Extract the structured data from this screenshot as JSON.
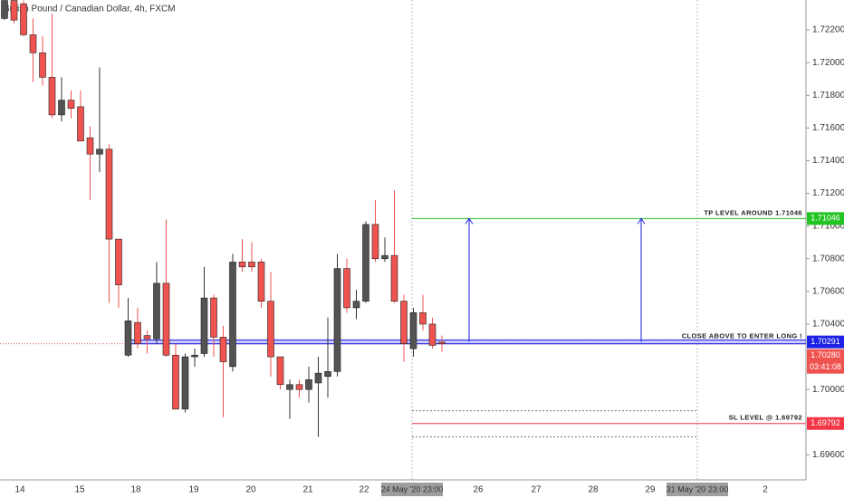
{
  "chart_data": {
    "type": "candlestick",
    "title": "British Pound / Canadian Dollar, 4h, FXCM",
    "up_color": "#535353",
    "down_color": "#ef5350",
    "ohlc": [
      [
        1.7227,
        1.7238,
        1.7226,
        1.7238
      ],
      [
        1.7238,
        1.7238,
        1.7224,
        1.7226
      ],
      [
        1.7236,
        1.7238,
        1.7216,
        1.7217
      ],
      [
        1.7217,
        1.7227,
        1.7188,
        1.7206
      ],
      [
        1.7206,
        1.7216,
        1.7186,
        1.7191
      ],
      [
        1.7191,
        1.723,
        1.7166,
        1.7168
      ],
      [
        1.7168,
        1.7191,
        1.7164,
        1.7177
      ],
      [
        1.7177,
        1.7183,
        1.7166,
        1.7172
      ],
      [
        1.7173,
        1.7183,
        1.7152,
        1.7152
      ],
      [
        1.7154,
        1.7161,
        1.7116,
        1.7144
      ],
      [
        1.7144,
        1.7197,
        1.7133,
        1.7147
      ],
      [
        1.7147,
        1.715,
        1.7053,
        1.7092
      ],
      [
        1.7092,
        1.7092,
        1.705,
        1.7064
      ],
      [
        1.7021,
        1.7056,
        1.702,
        1.7042
      ],
      [
        1.7041,
        1.705,
        1.7025,
        1.7028
      ],
      [
        1.7033,
        1.7036,
        1.7022,
        1.7031
      ],
      [
        1.7031,
        1.7078,
        1.7028,
        1.7065
      ],
      [
        1.7065,
        1.7104,
        1.702,
        1.7021
      ],
      [
        1.7021,
        1.7028,
        1.6988,
        1.6988
      ],
      [
        1.6988,
        1.7022,
        1.6986,
        1.702
      ],
      [
        1.702,
        1.7025,
        1.7014,
        1.7021
      ],
      [
        1.7022,
        1.7075,
        1.702,
        1.7056
      ],
      [
        1.7056,
        1.7058,
        1.702,
        1.7032
      ],
      [
        1.7032,
        1.7039,
        1.6983,
        1.7017
      ],
      [
        1.7014,
        1.7083,
        1.7011,
        1.7078
      ],
      [
        1.7078,
        1.7092,
        1.7072,
        1.7075
      ],
      [
        1.7078,
        1.709,
        1.7072,
        1.7075
      ],
      [
        1.7078,
        1.708,
        1.705,
        1.7054
      ],
      [
        1.7054,
        1.7072,
        1.7008,
        1.702
      ],
      [
        1.702,
        1.702,
        1.7,
        1.7003
      ],
      [
        1.7,
        1.7006,
        1.6982,
        1.7003
      ],
      [
        1.7003,
        1.7006,
        1.6995,
        1.7
      ],
      [
        1.7,
        1.7014,
        1.6992,
        1.7006
      ],
      [
        1.7004,
        1.702,
        1.6971,
        1.701
      ],
      [
        1.7008,
        1.7044,
        1.6995,
        1.7011
      ],
      [
        1.7011,
        1.7083,
        1.7008,
        1.7074
      ],
      [
        1.7074,
        1.708,
        1.7047,
        1.705
      ],
      [
        1.705,
        1.7061,
        1.7043,
        1.7054
      ],
      [
        1.7054,
        1.7103,
        1.7053,
        1.7101
      ],
      [
        1.7101,
        1.7116,
        1.7078,
        1.708
      ],
      [
        1.708,
        1.7093,
        1.7078,
        1.7082
      ],
      [
        1.7082,
        1.7122,
        1.7053,
        1.7054
      ],
      [
        1.7054,
        1.7058,
        1.7017,
        1.7028
      ],
      [
        1.7025,
        1.705,
        1.702,
        1.7047
      ],
      [
        1.7047,
        1.7058,
        1.7036,
        1.704
      ],
      [
        1.704,
        1.7044,
        1.7025,
        1.7027
      ],
      [
        1.7029,
        1.7033,
        1.7023,
        1.7028
      ]
    ],
    "ylim": [
      1.69447,
      1.72383
    ],
    "yticks": [
      {
        "value": 1.722,
        "label": "1.72200"
      },
      {
        "value": 1.72,
        "label": "1.72000"
      },
      {
        "value": 1.718,
        "label": "1.71800"
      },
      {
        "value": 1.716,
        "label": "1.71600"
      },
      {
        "value": 1.714,
        "label": "1.71400"
      },
      {
        "value": 1.712,
        "label": "1.71200"
      },
      {
        "value": 1.71,
        "label": "1.71000"
      },
      {
        "value": 1.708,
        "label": "1.70800"
      },
      {
        "value": 1.706,
        "label": "1.70600"
      },
      {
        "value": 1.704,
        "label": "1.70400"
      },
      {
        "value": 1.7,
        "label": "1.70000"
      },
      {
        "value": 1.696,
        "label": "1.69600"
      }
    ],
    "x_labels": [
      "14",
      "15",
      "18",
      "19",
      "20",
      "21",
      "22",
      "24 May '20  23:00",
      "26",
      "27",
      "28",
      "29",
      "31 May '20  23:00",
      "2"
    ],
    "levels": [
      {
        "text": "TP LEVEL AROUND 1.71046",
        "value": 1.71046,
        "color": "#22c422"
      },
      {
        "text": "CLOSE ABOVE TO ENTER LONG !",
        "value": 1.70291,
        "color": "#1e22e6"
      },
      {
        "text": "SL LEVEL @ 1.69792",
        "value": 1.69792,
        "color": "#f23645"
      }
    ],
    "zone": {
      "top": 1.6987,
      "bottom": 1.6971
    },
    "last_price": {
      "value": 1.7028,
      "label": "1.70280"
    },
    "countdown": "03:41:08"
  }
}
